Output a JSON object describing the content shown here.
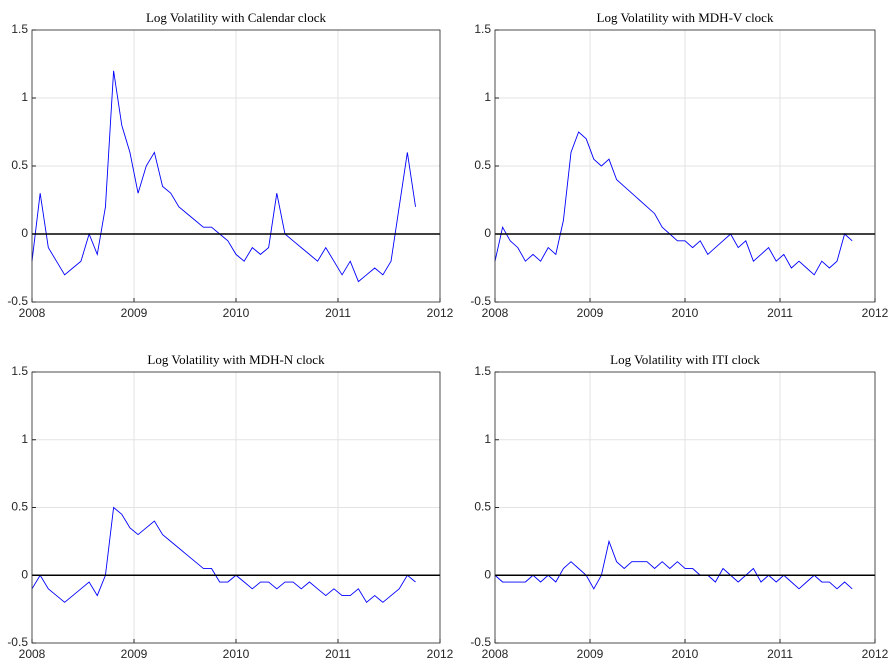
{
  "chart_data": [
    {
      "type": "line",
      "title": "Log Volatility with Calendar clock",
      "x": [
        2008,
        2008.08,
        2008.16,
        2008.24,
        2008.32,
        2008.4,
        2008.48,
        2008.56,
        2008.64,
        2008.72,
        2008.8,
        2008.88,
        2008.96,
        2009.04,
        2009.12,
        2009.2,
        2009.28,
        2009.36,
        2009.44,
        2009.52,
        2009.6,
        2009.68,
        2009.76,
        2009.84,
        2009.92,
        2010,
        2010.08,
        2010.16,
        2010.24,
        2010.32,
        2010.4,
        2010.48,
        2010.56,
        2010.64,
        2010.72,
        2010.8,
        2010.88,
        2010.96,
        2011.04,
        2011.12,
        2011.2,
        2011.28,
        2011.36,
        2011.44,
        2011.52,
        2011.6,
        2011.68,
        2011.76
      ],
      "series": [
        {
          "color": "#0000ff",
          "values": [
            -0.2,
            0.3,
            -0.1,
            -0.2,
            -0.3,
            -0.25,
            -0.2,
            0.0,
            -0.15,
            0.2,
            1.2,
            0.8,
            0.6,
            0.3,
            0.5,
            0.6,
            0.35,
            0.3,
            0.2,
            0.15,
            0.1,
            0.05,
            0.05,
            0.0,
            -0.05,
            -0.15,
            -0.2,
            -0.1,
            -0.15,
            -0.1,
            0.3,
            0.0,
            -0.05,
            -0.1,
            -0.15,
            -0.2,
            -0.1,
            -0.2,
            -0.3,
            -0.2,
            -0.35,
            -0.3,
            -0.25,
            -0.3,
            -0.2,
            0.2,
            0.6,
            0.2
          ]
        }
      ],
      "xlim": [
        2008,
        2012
      ],
      "ylim": [
        -0.5,
        1.5
      ],
      "xticks": [
        2008,
        2009,
        2010,
        2011,
        2012
      ],
      "yticks": [
        -0.5,
        0,
        0.5,
        1,
        1.5
      ],
      "grid": true,
      "reference_line": 0
    },
    {
      "type": "line",
      "title": "Log Volatility with MDH-V clock",
      "x": [
        2008,
        2008.08,
        2008.16,
        2008.24,
        2008.32,
        2008.4,
        2008.48,
        2008.56,
        2008.64,
        2008.72,
        2008.8,
        2008.88,
        2008.96,
        2009.04,
        2009.12,
        2009.2,
        2009.28,
        2009.36,
        2009.44,
        2009.52,
        2009.6,
        2009.68,
        2009.76,
        2009.84,
        2009.92,
        2010,
        2010.08,
        2010.16,
        2010.24,
        2010.32,
        2010.4,
        2010.48,
        2010.56,
        2010.64,
        2010.72,
        2010.8,
        2010.88,
        2010.96,
        2011.04,
        2011.12,
        2011.2,
        2011.28,
        2011.36,
        2011.44,
        2011.52,
        2011.6,
        2011.68,
        2011.76
      ],
      "series": [
        {
          "color": "#0000ff",
          "values": [
            -0.2,
            0.05,
            -0.05,
            -0.1,
            -0.2,
            -0.15,
            -0.2,
            -0.1,
            -0.15,
            0.1,
            0.6,
            0.75,
            0.7,
            0.55,
            0.5,
            0.55,
            0.4,
            0.35,
            0.3,
            0.25,
            0.2,
            0.15,
            0.05,
            0.0,
            -0.05,
            -0.05,
            -0.1,
            -0.05,
            -0.15,
            -0.1,
            -0.05,
            0.0,
            -0.1,
            -0.05,
            -0.2,
            -0.15,
            -0.1,
            -0.2,
            -0.15,
            -0.25,
            -0.2,
            -0.25,
            -0.3,
            -0.2,
            -0.25,
            -0.2,
            0.0,
            -0.05
          ]
        }
      ],
      "xlim": [
        2008,
        2012
      ],
      "ylim": [
        -0.5,
        1.5
      ],
      "xticks": [
        2008,
        2009,
        2010,
        2011,
        2012
      ],
      "yticks": [
        -0.5,
        0,
        0.5,
        1,
        1.5
      ],
      "grid": true,
      "reference_line": 0
    },
    {
      "type": "line",
      "title": "Log Volatility with MDH-N clock",
      "x": [
        2008,
        2008.08,
        2008.16,
        2008.24,
        2008.32,
        2008.4,
        2008.48,
        2008.56,
        2008.64,
        2008.72,
        2008.8,
        2008.88,
        2008.96,
        2009.04,
        2009.12,
        2009.2,
        2009.28,
        2009.36,
        2009.44,
        2009.52,
        2009.6,
        2009.68,
        2009.76,
        2009.84,
        2009.92,
        2010,
        2010.08,
        2010.16,
        2010.24,
        2010.32,
        2010.4,
        2010.48,
        2010.56,
        2010.64,
        2010.72,
        2010.8,
        2010.88,
        2010.96,
        2011.04,
        2011.12,
        2011.2,
        2011.28,
        2011.36,
        2011.44,
        2011.52,
        2011.6,
        2011.68,
        2011.76
      ],
      "series": [
        {
          "color": "#0000ff",
          "values": [
            -0.1,
            0.0,
            -0.1,
            -0.15,
            -0.2,
            -0.15,
            -0.1,
            -0.05,
            -0.15,
            0.0,
            0.5,
            0.45,
            0.35,
            0.3,
            0.35,
            0.4,
            0.3,
            0.25,
            0.2,
            0.15,
            0.1,
            0.05,
            0.05,
            -0.05,
            -0.05,
            0.0,
            -0.05,
            -0.1,
            -0.05,
            -0.05,
            -0.1,
            -0.05,
            -0.05,
            -0.1,
            -0.05,
            -0.1,
            -0.15,
            -0.1,
            -0.15,
            -0.15,
            -0.1,
            -0.2,
            -0.15,
            -0.2,
            -0.15,
            -0.1,
            0.0,
            -0.05
          ]
        }
      ],
      "xlim": [
        2008,
        2012
      ],
      "ylim": [
        -0.5,
        1.5
      ],
      "xticks": [
        2008,
        2009,
        2010,
        2011,
        2012
      ],
      "yticks": [
        -0.5,
        0,
        0.5,
        1,
        1.5
      ],
      "grid": true,
      "reference_line": 0
    },
    {
      "type": "line",
      "title": "Log Volatility with ITI clock",
      "x": [
        2008,
        2008.08,
        2008.16,
        2008.24,
        2008.32,
        2008.4,
        2008.48,
        2008.56,
        2008.64,
        2008.72,
        2008.8,
        2008.88,
        2008.96,
        2009.04,
        2009.12,
        2009.2,
        2009.28,
        2009.36,
        2009.44,
        2009.52,
        2009.6,
        2009.68,
        2009.76,
        2009.84,
        2009.92,
        2010,
        2010.08,
        2010.16,
        2010.24,
        2010.32,
        2010.4,
        2010.48,
        2010.56,
        2010.64,
        2010.72,
        2010.8,
        2010.88,
        2010.96,
        2011.04,
        2011.12,
        2011.2,
        2011.28,
        2011.36,
        2011.44,
        2011.52,
        2011.6,
        2011.68,
        2011.76
      ],
      "series": [
        {
          "color": "#0000ff",
          "values": [
            0.0,
            -0.05,
            -0.05,
            -0.05,
            -0.05,
            0.0,
            -0.05,
            0.0,
            -0.05,
            0.05,
            0.1,
            0.05,
            0.0,
            -0.1,
            0.0,
            0.25,
            0.1,
            0.05,
            0.1,
            0.1,
            0.1,
            0.05,
            0.1,
            0.05,
            0.1,
            0.05,
            0.05,
            0.0,
            0.0,
            -0.05,
            0.05,
            0.0,
            -0.05,
            0.0,
            0.05,
            -0.05,
            0.0,
            -0.05,
            0.0,
            -0.05,
            -0.1,
            -0.05,
            0.0,
            -0.05,
            -0.05,
            -0.1,
            -0.05,
            -0.1
          ]
        }
      ],
      "xlim": [
        2008,
        2012
      ],
      "ylim": [
        -0.5,
        1.5
      ],
      "xticks": [
        2008,
        2009,
        2010,
        2011,
        2012
      ],
      "yticks": [
        -0.5,
        0,
        0.5,
        1,
        1.5
      ],
      "grid": true,
      "reference_line": 0
    }
  ]
}
